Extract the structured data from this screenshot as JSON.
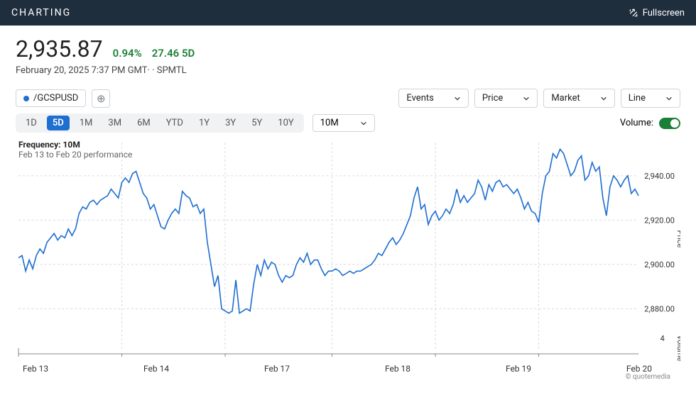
{
  "header": {
    "title": "CHARTING",
    "fullscreen_label": "Fullscreen"
  },
  "quote": {
    "price": "2,935.87",
    "pct_change": "0.94%",
    "abs_change": "27.46 5D",
    "timestamp": "February 20, 2025 7:37 PM GMT·",
    "symbol": "SPMTL"
  },
  "ticker": {
    "label": "/GCSPUSD",
    "color": "#1f6fd1"
  },
  "dropdowns": {
    "events": "Events",
    "price": "Price",
    "market": "Market",
    "chart_type": "Line"
  },
  "ranges": [
    "1D",
    "5D",
    "1M",
    "3M",
    "6M",
    "YTD",
    "1Y",
    "3Y",
    "5Y",
    "10Y"
  ],
  "active_range": "5D",
  "interval": "10M",
  "volume_label": "Volume:",
  "volume_on": true,
  "chart_meta": {
    "frequency_label": "Frequency: 10M",
    "range_label": "Feb 13 to Feb 20 performance",
    "yaxis_title": "Price",
    "volaxis_title": "Volume",
    "yticks": [
      2880,
      2900,
      2920,
      2940
    ],
    "ytick_labels": [
      "2,880.00",
      "2,900.00",
      "2,920.00",
      "2,940.00"
    ],
    "vol_tick": "4",
    "xticks": [
      "Feb 13",
      "Feb 14",
      "Feb 17",
      "Feb 18",
      "Feb 19",
      "Feb 20"
    ],
    "ylim": [
      2868,
      2955
    ],
    "line_color": "#1f6fd1",
    "grid_color": "#d8dadd",
    "background": "#ffffff",
    "line_width": 1.6,
    "credit": "© quotemedia",
    "series": [
      2903,
      2904,
      2897,
      2902,
      2898,
      2904,
      2907,
      2905,
      2910,
      2912,
      2914,
      2911,
      2913,
      2912,
      2916,
      2913,
      2916,
      2923,
      2926,
      2925,
      2928,
      2929,
      2927,
      2929,
      2930,
      2931,
      2934,
      2932,
      2930,
      2937,
      2939,
      2937,
      2941,
      2942,
      2937,
      2932,
      2930,
      2925,
      2927,
      2922,
      2917,
      2916,
      2920,
      2923,
      2925,
      2923,
      2933,
      2931,
      2930,
      2926,
      2927,
      2923,
      2925,
      2910,
      2900,
      2890,
      2895,
      2880,
      2879,
      2878,
      2879,
      2893,
      2878,
      2879,
      2880,
      2879,
      2891,
      2900,
      2895,
      2902,
      2898,
      2901,
      2900,
      2895,
      2892,
      2895,
      2894,
      2895,
      2900,
      2903,
      2901,
      2905,
      2900,
      2902,
      2902,
      2898,
      2895,
      2897,
      2897,
      2898,
      2897,
      2895,
      2896,
      2897,
      2896,
      2897,
      2897,
      2898,
      2899,
      2900,
      2902,
      2905,
      2904,
      2907,
      2910,
      2912,
      2909,
      2911,
      2914,
      2918,
      2922,
      2930,
      2935,
      2925,
      2927,
      2918,
      2922,
      2924,
      2920,
      2922,
      2925,
      2923,
      2927,
      2934,
      2928,
      2931,
      2928,
      2930,
      2932,
      2938,
      2935,
      2929,
      2936,
      2933,
      2937,
      2938,
      2935,
      2936,
      2934,
      2932,
      2934,
      2930,
      2925,
      2928,
      2924,
      2923,
      2919,
      2932,
      2940,
      2942,
      2950,
      2948,
      2952,
      2950,
      2945,
      2940,
      2942,
      2947,
      2949,
      2938,
      2940,
      2946,
      2942,
      2944,
      2930,
      2922,
      2935,
      2940,
      2938,
      2935,
      2938,
      2940,
      2932,
      2934,
      2931
    ]
  }
}
